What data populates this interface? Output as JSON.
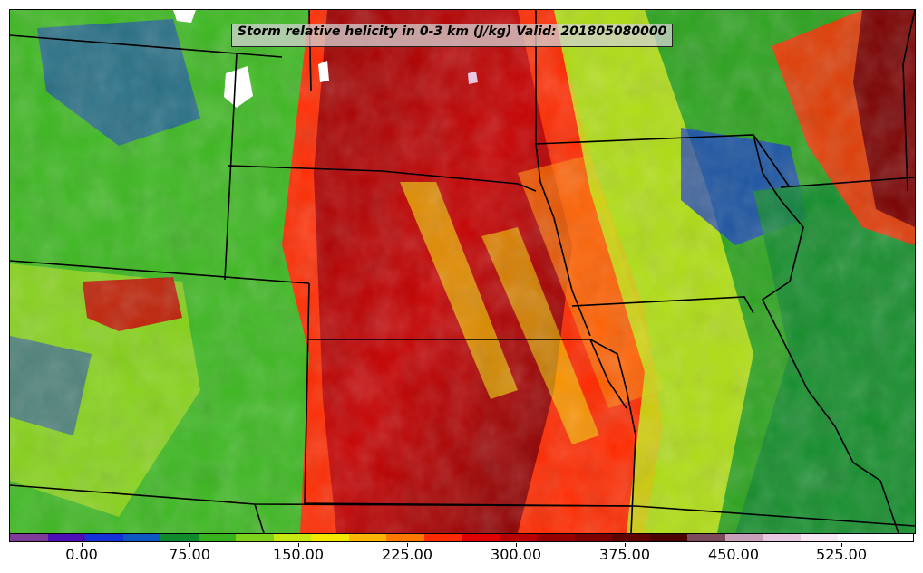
{
  "title": "Storm relative helicity in 0-3 km (J/kg) Valid: 201805080000",
  "colorbar": {
    "colors": [
      "#7d3c98",
      "#4b0fb5",
      "#1432d8",
      "#0f58c4",
      "#108a2e",
      "#36b21c",
      "#7fd21a",
      "#c7e812",
      "#f3e600",
      "#ffb400",
      "#ff7800",
      "#ff2a00",
      "#e00000",
      "#b80000",
      "#940000",
      "#7a0000",
      "#5e0000",
      "#4a0000",
      "#7a4a5a",
      "#c8a0b8",
      "#e8c8e0",
      "#f8e8f4",
      "#fff8ff",
      "#ffffff"
    ],
    "ticks": [
      {
        "label": "0.00"
      },
      {
        "label": "75.00"
      },
      {
        "label": "150.00"
      },
      {
        "label": "225.00"
      },
      {
        "label": "300.00"
      },
      {
        "label": "375.00"
      },
      {
        "label": "450.00"
      },
      {
        "label": "525.00"
      }
    ]
  }
}
